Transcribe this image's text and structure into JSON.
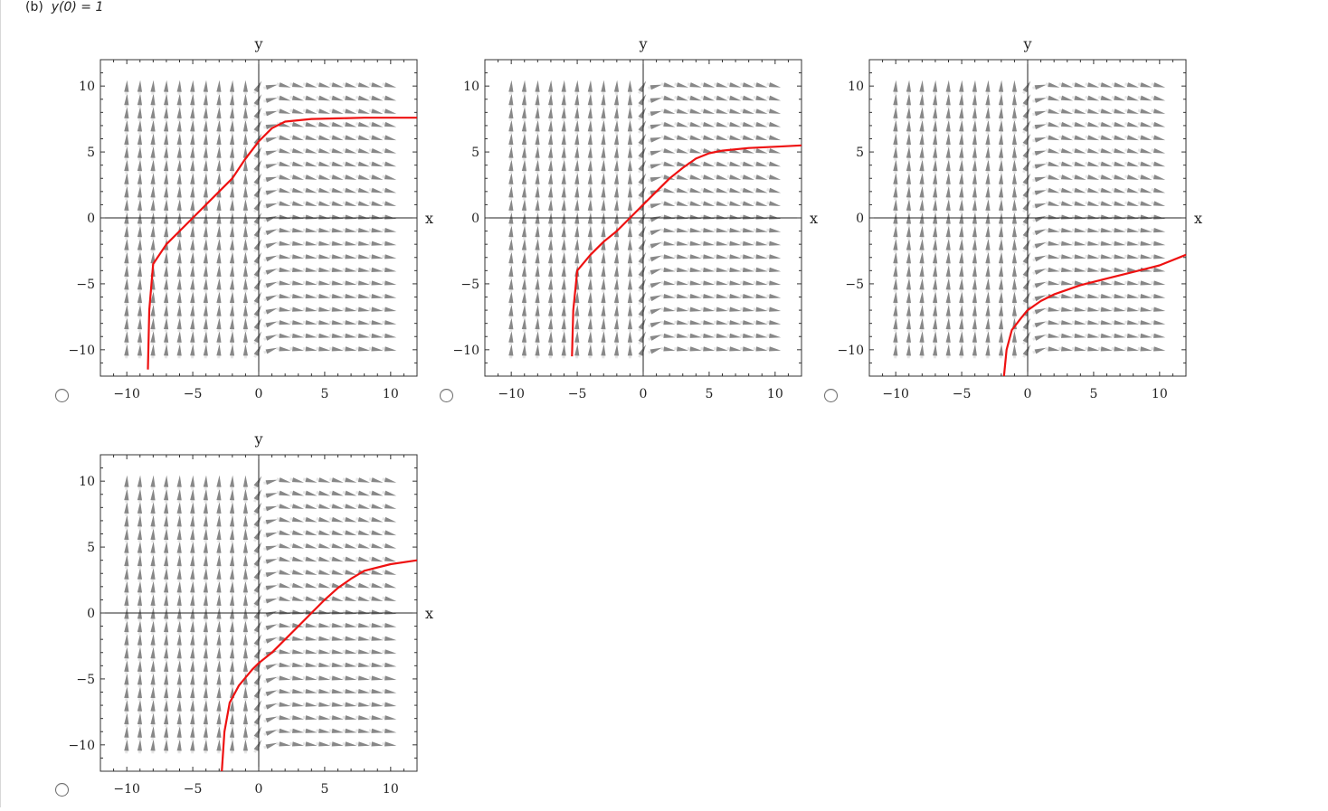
{
  "question": {
    "part": "(b)",
    "condition": "y(0) = 1"
  },
  "colors": {
    "arrow": "#888888",
    "curve": "#ee1111",
    "axis": "#222222"
  },
  "chart_data": [
    {
      "type": "line",
      "option_index": 1,
      "xlabel": "x",
      "ylabel": "y",
      "xlim": [
        -12,
        12
      ],
      "ylim": [
        -12,
        12
      ],
      "xticks": [
        -10,
        -5,
        0,
        5,
        10
      ],
      "yticks": [
        -10,
        -5,
        0,
        5,
        10
      ],
      "xtick_labels": [
        "−10",
        "−5",
        "0",
        "5",
        "10"
      ],
      "ytick_labels": [
        "−10",
        "−5",
        "0",
        "5",
        "10"
      ],
      "background": "direction field",
      "series": [
        {
          "x": [
            -8.4,
            -8.3,
            -8.0,
            -7.0,
            -6.0,
            -5.0,
            -4.0,
            -3.0,
            -2.0,
            -1.0,
            0.0,
            1.0,
            2.0,
            4.0,
            6.0,
            8.0,
            10.0,
            12.0
          ],
          "y": [
            -11.5,
            -7.0,
            -3.5,
            -2.0,
            -1.0,
            0.0,
            1.0,
            2.0,
            3.0,
            4.5,
            5.8,
            6.8,
            7.3,
            7.5,
            7.55,
            7.6,
            7.6,
            7.6
          ]
        }
      ]
    },
    {
      "type": "line",
      "option_index": 2,
      "xlabel": "x",
      "ylabel": "y",
      "xlim": [
        -12,
        12
      ],
      "ylim": [
        -12,
        12
      ],
      "xticks": [
        -10,
        -5,
        0,
        5,
        10
      ],
      "yticks": [
        -10,
        -5,
        0,
        5,
        10
      ],
      "xtick_labels": [
        "−10",
        "−5",
        "0",
        "5",
        "10"
      ],
      "ytick_labels": [
        "−10",
        "−5",
        "0",
        "5",
        "10"
      ],
      "background": "direction field",
      "series": [
        {
          "x": [
            -5.4,
            -5.3,
            -5.0,
            -4.0,
            -3.0,
            -2.0,
            -1.0,
            0.0,
            1.0,
            2.0,
            3.0,
            4.0,
            5.0,
            6.0,
            8.0,
            10.0,
            12.0
          ],
          "y": [
            -10.5,
            -7.0,
            -4.0,
            -2.8,
            -1.8,
            -1.0,
            0.0,
            1.0,
            2.0,
            3.0,
            3.8,
            4.5,
            4.9,
            5.1,
            5.3,
            5.4,
            5.5
          ]
        }
      ]
    },
    {
      "type": "line",
      "option_index": 3,
      "xlabel": "x",
      "ylabel": "y",
      "xlim": [
        -12,
        12
      ],
      "ylim": [
        -12,
        12
      ],
      "xticks": [
        -10,
        -5,
        0,
        5,
        10
      ],
      "yticks": [
        -10,
        -5,
        0,
        5,
        10
      ],
      "xtick_labels": [
        "−10",
        "−5",
        "0",
        "5",
        "10"
      ],
      "ytick_labels": [
        "−10",
        "−5",
        "0",
        "5",
        "10"
      ],
      "background": "direction field",
      "series": [
        {
          "x": [
            -1.8,
            -1.6,
            -1.2,
            -0.5,
            0.0,
            1.0,
            2.0,
            4.0,
            6.0,
            8.0,
            10.0,
            12.0
          ],
          "y": [
            -12.0,
            -10.0,
            -8.5,
            -7.6,
            -7.0,
            -6.3,
            -5.8,
            -5.1,
            -4.6,
            -4.1,
            -3.6,
            -2.8
          ]
        }
      ]
    },
    {
      "type": "line",
      "option_index": 4,
      "xlabel": "x",
      "ylabel": "y",
      "xlim": [
        -12,
        12
      ],
      "ylim": [
        -12,
        12
      ],
      "xticks": [
        -10,
        -5,
        0,
        5,
        10
      ],
      "yticks": [
        -10,
        -5,
        0,
        5,
        10
      ],
      "xtick_labels": [
        "−10",
        "−5",
        "0",
        "5",
        "10"
      ],
      "ytick_labels": [
        "−10",
        "−5",
        "0",
        "5",
        "10"
      ],
      "background": "direction field",
      "series": [
        {
          "x": [
            -2.8,
            -2.6,
            -2.2,
            -1.5,
            -0.5,
            0.0,
            1.0,
            2.0,
            3.0,
            4.0,
            5.0,
            6.0,
            7.0,
            8.0,
            10.0,
            12.0
          ],
          "y": [
            -12.0,
            -9.0,
            -6.8,
            -5.5,
            -4.3,
            -3.8,
            -3.0,
            -2.0,
            -1.0,
            0.0,
            1.0,
            1.9,
            2.6,
            3.2,
            3.7,
            4.0
          ]
        }
      ]
    }
  ]
}
